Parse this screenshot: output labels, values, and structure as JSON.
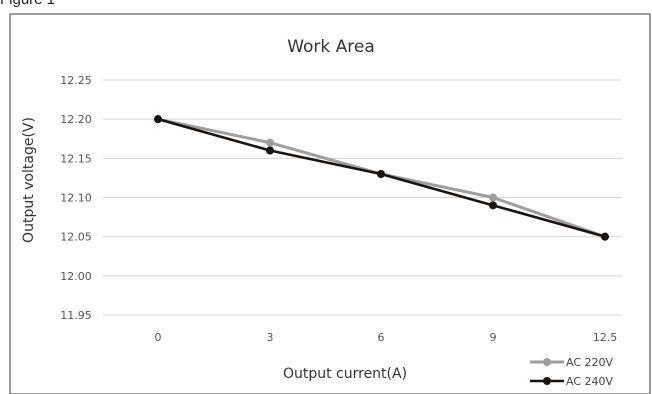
{
  "figure_caption": "Figure 1",
  "chart_data": {
    "type": "line",
    "title": "Work Area",
    "xlabel": "Output current(A)",
    "ylabel": "Output voltage(V)",
    "categories": [
      "0",
      "3",
      "6",
      "9",
      "12.5"
    ],
    "ylim": [
      11.95,
      12.25
    ],
    "yticks": [
      "11.95",
      "12.00",
      "12.05",
      "12.10",
      "12.15",
      "12.20",
      "12.25"
    ],
    "grid": true,
    "legend_position": "bottom-right",
    "series": [
      {
        "name": "AC 220V",
        "values": [
          12.2,
          12.17,
          12.13,
          12.1,
          12.05
        ],
        "color": "#9e9e9e"
      },
      {
        "name": "AC 240V",
        "values": [
          12.2,
          12.16,
          12.13,
          12.09,
          12.05
        ],
        "color": "#1a1410"
      }
    ]
  }
}
